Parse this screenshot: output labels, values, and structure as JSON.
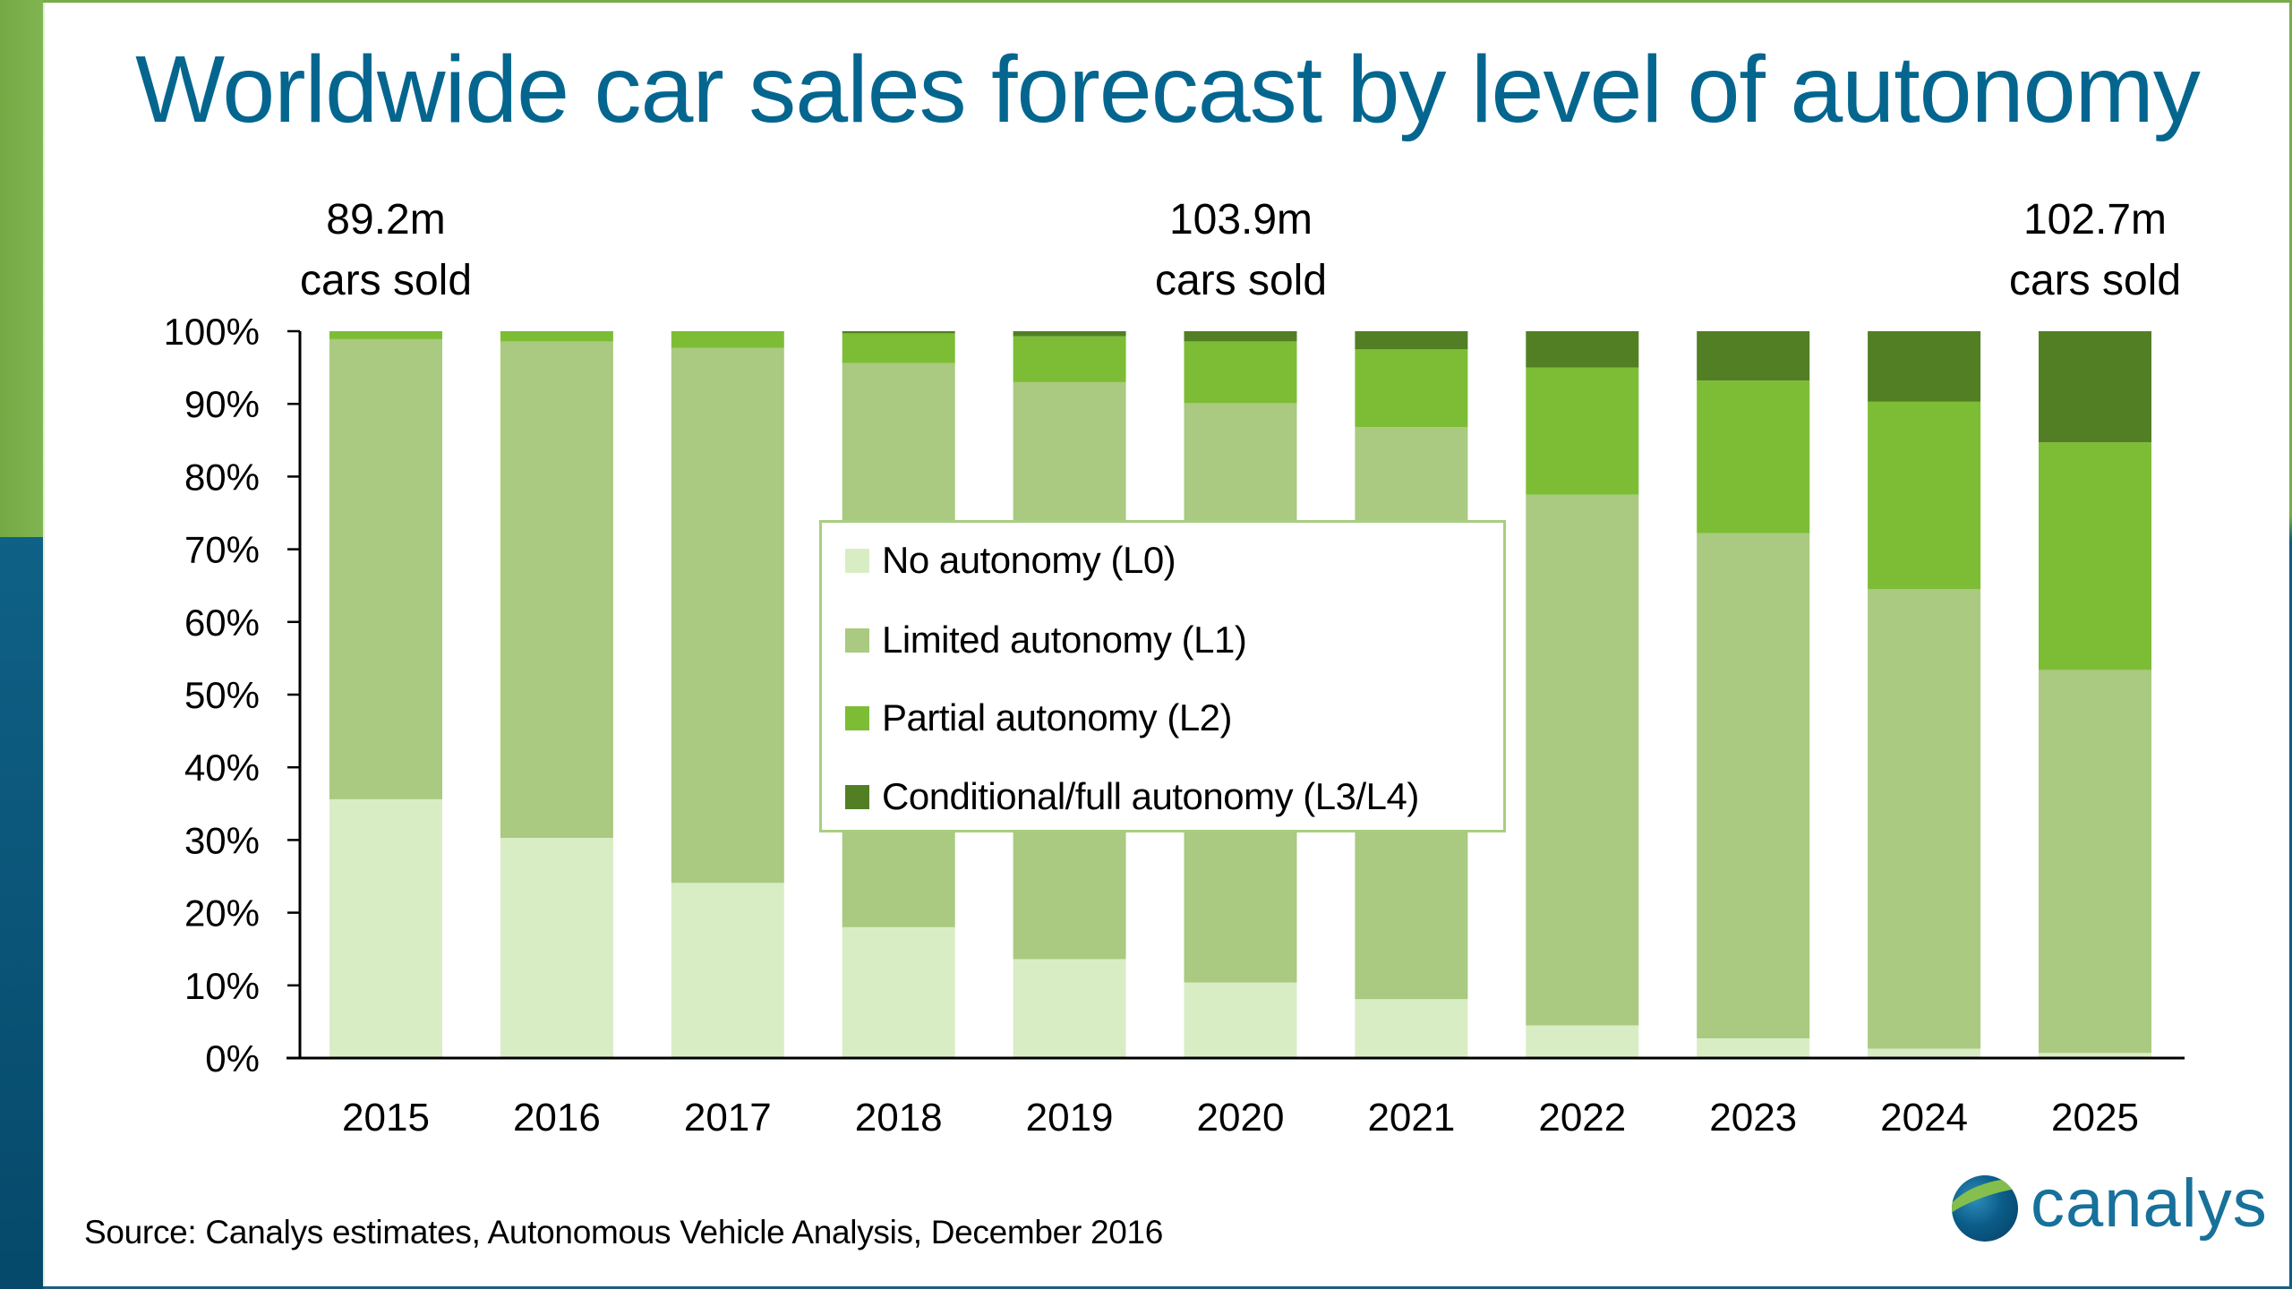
{
  "slide": {
    "title": "Worldwide car sales forecast by level of autonomy",
    "callouts": [
      {
        "value": "89.2m",
        "label": "cars sold",
        "year": "2015"
      },
      {
        "value": "103.9m",
        "label": "cars sold",
        "year": "2020"
      },
      {
        "value": "102.7m",
        "label": "cars sold",
        "year": "2025"
      }
    ],
    "source": "Source: Canalys estimates, Autonomous Vehicle Analysis, December 2016",
    "logo_text": "canalys",
    "colors": {
      "title": "#04668f",
      "accent_green": "#79ac47",
      "accent_blue": "#0e5e82"
    }
  },
  "chart_data": {
    "type": "bar",
    "stacked": true,
    "percent_stacked": true,
    "title": "Worldwide car sales forecast by level of autonomy",
    "xlabel": "",
    "ylabel": "",
    "ylim": [
      0,
      100
    ],
    "yticks": [
      "0%",
      "10%",
      "20%",
      "30%",
      "40%",
      "50%",
      "60%",
      "70%",
      "80%",
      "90%",
      "100%"
    ],
    "grid": false,
    "legend_position": "center",
    "categories": [
      "2015",
      "2016",
      "2017",
      "2018",
      "2019",
      "2020",
      "2021",
      "2022",
      "2023",
      "2024",
      "2025"
    ],
    "series": [
      {
        "name": "No autonomy (L0)",
        "color": "#d9edc5",
        "values": [
          35.6,
          30.3,
          24.1,
          18.0,
          13.6,
          10.4,
          8.1,
          4.5,
          2.7,
          1.3,
          0.7
        ]
      },
      {
        "name": "Limited autonomy (L1)",
        "color": "#a9ca80",
        "values": [
          63.3,
          68.3,
          73.6,
          77.6,
          79.4,
          79.7,
          78.7,
          73.0,
          69.5,
          63.2,
          52.7
        ]
      },
      {
        "name": "Partial autonomy (L2)",
        "color": "#7dbd35",
        "values": [
          1.1,
          1.4,
          2.3,
          4.1,
          6.3,
          8.5,
          10.7,
          17.5,
          21.0,
          25.8,
          31.3
        ]
      },
      {
        "name": "Conditional/full autonomy (L3/L4)",
        "color": "#527f24",
        "values": [
          0.0,
          0.0,
          0.0,
          0.3,
          0.7,
          1.4,
          2.5,
          5.0,
          6.8,
          9.7,
          15.3
        ]
      }
    ],
    "annotations": [
      {
        "category": "2015",
        "text": "89.2m cars sold"
      },
      {
        "category": "2020",
        "text": "103.9m cars sold"
      },
      {
        "category": "2025",
        "text": "102.7m cars sold"
      }
    ]
  }
}
